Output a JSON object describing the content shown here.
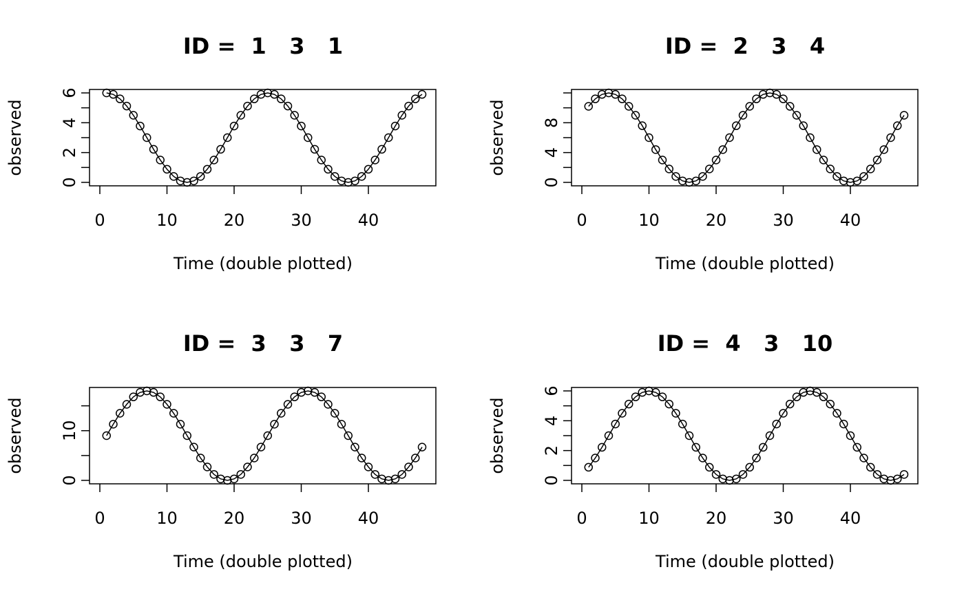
{
  "colors": {
    "background": "#ffffff",
    "ink": "#000000"
  },
  "chart_data": [
    {
      "type": "line",
      "title": "ID =  1   3   1",
      "xlabel": "Time (double plotted)",
      "ylabel": "observed",
      "xlim": [
        0,
        48
      ],
      "ylim": [
        0,
        6
      ],
      "xticks": [
        0,
        10,
        20,
        30,
        40
      ],
      "yticks": [
        0,
        1,
        2,
        3,
        4,
        5,
        6
      ],
      "ytick_labels": [
        "0",
        "",
        "2",
        "",
        "4",
        "",
        "6"
      ],
      "markers": "open-circle",
      "series": [
        {
          "x": [
            1,
            2,
            3,
            4,
            5,
            6,
            7,
            8,
            9,
            10,
            11,
            12,
            13,
            14,
            15,
            16,
            17,
            18,
            19,
            20,
            21,
            22,
            23,
            24,
            25,
            26,
            27,
            28,
            29,
            30,
            31,
            32,
            33,
            34,
            35,
            36,
            37,
            38,
            39,
            40,
            41,
            42,
            43,
            44,
            45,
            46,
            47,
            48
          ],
          "values": [
            6.0,
            5.9,
            5.6,
            5.12,
            4.5,
            3.78,
            3.0,
            2.22,
            1.5,
            0.88,
            0.4,
            0.1,
            0.0,
            0.1,
            0.4,
            0.88,
            1.5,
            2.22,
            3.0,
            3.78,
            4.5,
            5.12,
            5.6,
            5.9,
            6.0,
            5.9,
            5.6,
            5.12,
            4.5,
            3.78,
            3.0,
            2.22,
            1.5,
            0.88,
            0.4,
            0.1,
            0.0,
            0.1,
            0.4,
            0.88,
            1.5,
            2.22,
            3.0,
            3.78,
            4.5,
            5.12,
            5.6,
            5.9
          ]
        }
      ]
    },
    {
      "type": "line",
      "title": "ID =  2   3   4",
      "xlabel": "Time (double plotted)",
      "ylabel": "observed",
      "xlim": [
        0,
        48
      ],
      "ylim": [
        0,
        12
      ],
      "xticks": [
        0,
        10,
        20,
        30,
        40
      ],
      "yticks": [
        0,
        2,
        4,
        6,
        8,
        10,
        12
      ],
      "ytick_labels": [
        "0",
        "",
        "4",
        "",
        "8",
        "",
        ""
      ],
      "markers": "open-circle",
      "series": [
        {
          "x": [
            1,
            2,
            3,
            4,
            5,
            6,
            7,
            8,
            9,
            10,
            11,
            12,
            13,
            14,
            15,
            16,
            17,
            18,
            19,
            20,
            21,
            22,
            23,
            24,
            25,
            26,
            27,
            28,
            29,
            30,
            31,
            32,
            33,
            34,
            35,
            36,
            37,
            38,
            39,
            40,
            41,
            42,
            43,
            44,
            45,
            46,
            47,
            48
          ],
          "values": [
            10.2,
            11.2,
            11.8,
            12.0,
            11.8,
            11.2,
            10.2,
            9.0,
            7.6,
            6.0,
            4.4,
            3.0,
            1.8,
            0.8,
            0.2,
            0.0,
            0.2,
            0.8,
            1.8,
            3.0,
            4.4,
            6.0,
            7.6,
            9.0,
            10.2,
            11.2,
            11.8,
            12.0,
            11.8,
            11.2,
            10.2,
            9.0,
            7.6,
            6.0,
            4.4,
            3.0,
            1.8,
            0.8,
            0.2,
            0.0,
            0.2,
            0.8,
            1.8,
            3.0,
            4.4,
            6.0,
            7.6,
            9.0
          ]
        }
      ]
    },
    {
      "type": "line",
      "title": "ID =  3   3   7",
      "xlabel": "Time (double plotted)",
      "ylabel": "observed",
      "xlim": [
        0,
        48
      ],
      "ylim": [
        0,
        18
      ],
      "xticks": [
        0,
        10,
        20,
        30,
        40
      ],
      "yticks": [
        0,
        5,
        10,
        15
      ],
      "ytick_labels": [
        "0",
        "",
        "10",
        ""
      ],
      "markers": "open-circle",
      "series": [
        {
          "x": [
            1,
            2,
            3,
            4,
            5,
            6,
            7,
            8,
            9,
            10,
            11,
            12,
            13,
            14,
            15,
            16,
            17,
            18,
            19,
            20,
            21,
            22,
            23,
            24,
            25,
            26,
            27,
            28,
            29,
            30,
            31,
            32,
            33,
            34,
            35,
            36,
            37,
            38,
            39,
            40,
            41,
            42,
            43,
            44,
            45,
            46,
            47,
            48
          ],
          "values": [
            9.0,
            11.3,
            13.5,
            15.3,
            16.8,
            17.7,
            18.0,
            17.7,
            16.8,
            15.3,
            13.5,
            11.3,
            9.0,
            6.7,
            4.5,
            2.7,
            1.2,
            0.3,
            0.0,
            0.3,
            1.2,
            2.7,
            4.5,
            6.7,
            9.0,
            11.3,
            13.5,
            15.3,
            16.8,
            17.7,
            18.0,
            17.7,
            16.8,
            15.3,
            13.5,
            11.3,
            9.0,
            6.7,
            4.5,
            2.7,
            1.2,
            0.3,
            0.0,
            0.3,
            1.2,
            2.7,
            4.5,
            6.7
          ]
        }
      ]
    },
    {
      "type": "line",
      "title": "ID =  4   3   10",
      "xlabel": "Time (double plotted)",
      "ylabel": "observed",
      "xlim": [
        0,
        48
      ],
      "ylim": [
        0,
        6
      ],
      "xticks": [
        0,
        10,
        20,
        30,
        40
      ],
      "yticks": [
        0,
        1,
        2,
        3,
        4,
        5,
        6
      ],
      "ytick_labels": [
        "0",
        "",
        "2",
        "",
        "4",
        "",
        "6"
      ],
      "markers": "open-circle",
      "series": [
        {
          "x": [
            1,
            2,
            3,
            4,
            5,
            6,
            7,
            8,
            9,
            10,
            11,
            12,
            13,
            14,
            15,
            16,
            17,
            18,
            19,
            20,
            21,
            22,
            23,
            24,
            25,
            26,
            27,
            28,
            29,
            30,
            31,
            32,
            33,
            34,
            35,
            36,
            37,
            38,
            39,
            40,
            41,
            42,
            43,
            44,
            45,
            46,
            47,
            48
          ],
          "values": [
            0.88,
            1.5,
            2.22,
            3.0,
            3.78,
            4.5,
            5.12,
            5.6,
            5.9,
            6.0,
            5.9,
            5.6,
            5.12,
            4.5,
            3.78,
            3.0,
            2.22,
            1.5,
            0.88,
            0.4,
            0.1,
            0.0,
            0.1,
            0.4,
            0.88,
            1.5,
            2.22,
            3.0,
            3.78,
            4.5,
            5.12,
            5.6,
            5.9,
            6.0,
            5.9,
            5.6,
            5.12,
            4.5,
            3.78,
            3.0,
            2.22,
            1.5,
            0.88,
            0.4,
            0.1,
            0.0,
            0.1,
            0.4
          ]
        }
      ]
    }
  ]
}
